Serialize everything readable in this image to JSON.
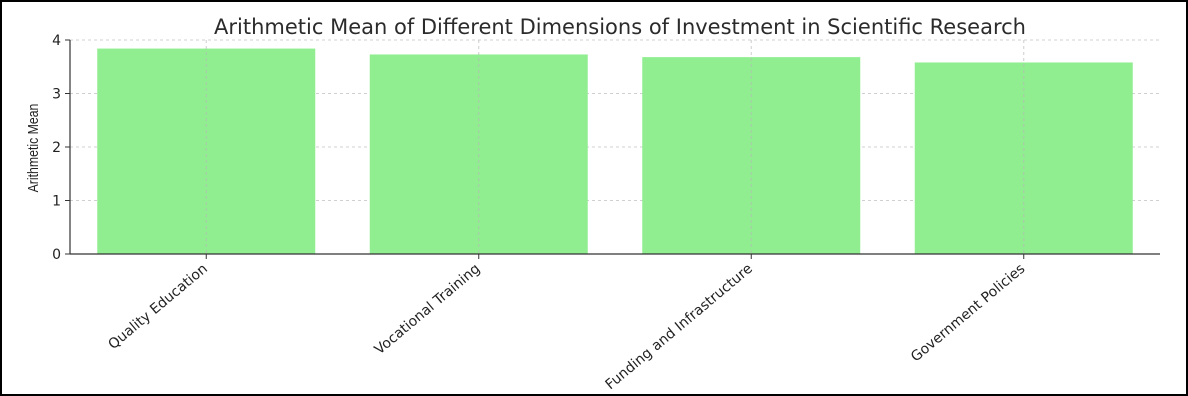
{
  "chart_data": {
    "type": "bar",
    "title": "Arithmetic Mean of Different Dimensions of Investment in Scientific Research",
    "xlabel": "",
    "ylabel": "Arithmetic Mean",
    "categories": [
      "Quality Education",
      "Vocational Training",
      "Funding and Infrastructure",
      "Government Policies"
    ],
    "values": [
      3.84,
      3.73,
      3.68,
      3.58
    ],
    "ylim": [
      0,
      4
    ],
    "yticks": [
      "0",
      "1",
      "2",
      "3",
      "4"
    ],
    "grid": true,
    "bar_color": "#90ee90",
    "legend": "none"
  }
}
